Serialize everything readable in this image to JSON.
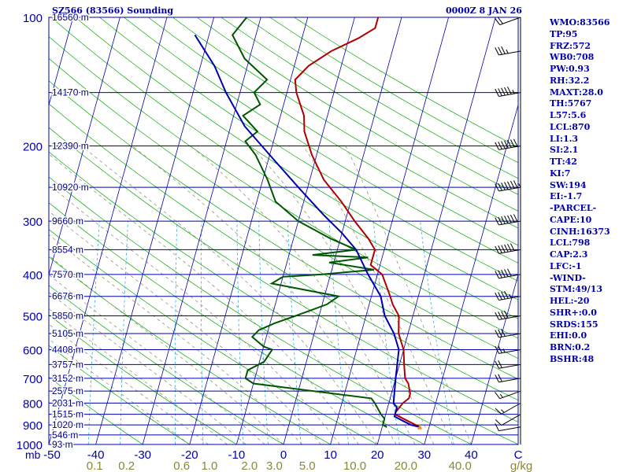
{
  "header": {
    "station": "SZ566 (83566) Sounding",
    "time": "0000Z  8 JAN 26"
  },
  "indices": [
    "WMO:83566",
    "TP:95",
    "FRZ:572",
    "WB0:708",
    "PW:0.93",
    "RH:32.2",
    "MAXT:28.0",
    "TH:5767",
    "L57:5.6",
    "LCL:870",
    "LI:1.3",
    "SI:2.1",
    "TT:42",
    "KI:7",
    "SW:194",
    "EI:-1.7",
    "-PARCEL-",
    "CAPE:10",
    "CINH:16373",
    "LCL:798",
    "CAP:2.3",
    "LFC:-1",
    "-WIND-",
    "STM:49/13",
    "HEL:-20",
    "SHR+:0.0",
    "SRDS:155",
    "EHI:0.0",
    "BRN:0.2",
    "BSHR:48"
  ],
  "chart_data": {
    "type": "line",
    "title": "SZ566 (83566) Sounding",
    "x_label": "C",
    "y_label": "mb",
    "moisture_unit": "g/kg",
    "x_ticks": [
      "-50",
      "-40",
      "-30",
      "-20",
      "-10",
      "0",
      "10",
      "20",
      "30",
      "40"
    ],
    "x_range": [
      -50,
      50
    ],
    "p_range": [
      1000,
      100
    ],
    "pressure_labels": [
      {
        "p": 100,
        "label": "100"
      },
      {
        "p": 200,
        "label": "200"
      },
      {
        "p": 300,
        "label": "300"
      },
      {
        "p": 400,
        "label": "400"
      },
      {
        "p": 500,
        "label": "500"
      },
      {
        "p": 600,
        "label": "600"
      },
      {
        "p": 700,
        "label": "700"
      },
      {
        "p": 800,
        "label": "800"
      },
      {
        "p": 900,
        "label": "900"
      },
      {
        "p": 1000,
        "label": "1000"
      }
    ],
    "height_labels": [
      {
        "p": 100,
        "label": "16560 m"
      },
      {
        "p": 150,
        "label": "14170 m"
      },
      {
        "p": 200,
        "label": "12390 m"
      },
      {
        "p": 250,
        "label": "10920 m"
      },
      {
        "p": 300,
        "label": "9660 m"
      },
      {
        "p": 350,
        "label": "8554 m"
      },
      {
        "p": 400,
        "label": "7570 m"
      },
      {
        "p": 450,
        "label": "6676 m"
      },
      {
        "p": 500,
        "label": "5850 m"
      },
      {
        "p": 550,
        "label": "5105 m"
      },
      {
        "p": 600,
        "label": "4408 m"
      },
      {
        "p": 650,
        "label": "3757 m"
      },
      {
        "p": 700,
        "label": "3152 m"
      },
      {
        "p": 750,
        "label": "2575 m"
      },
      {
        "p": 800,
        "label": "2031 m"
      },
      {
        "p": 850,
        "label": "1515 m"
      },
      {
        "p": 900,
        "label": "1020 m"
      },
      {
        "p": 950,
        "label": "546 m"
      },
      {
        "p": 1000,
        "label": "93 m"
      }
    ],
    "mixing_ratio_labels": [
      "0.1",
      "0.2",
      "0.6",
      "1.0",
      "2.0",
      "3.0",
      "5.0",
      "10.0",
      "20.0",
      "40.0"
    ],
    "series": [
      {
        "role": "temperature",
        "color": "#b00000",
        "points": [
          [
            28,
            910
          ],
          [
            27,
            900
          ],
          [
            24,
            870
          ],
          [
            22,
            850
          ],
          [
            22,
            840
          ],
          [
            23,
            800
          ],
          [
            24,
            780
          ],
          [
            24,
            760
          ],
          [
            23,
            720
          ],
          [
            22,
            700
          ],
          [
            21,
            650
          ],
          [
            20,
            600
          ],
          [
            18,
            550
          ],
          [
            17,
            500
          ],
          [
            15,
            470
          ],
          [
            14,
            450
          ],
          [
            11,
            400
          ],
          [
            8,
            380
          ],
          [
            8,
            350
          ],
          [
            6,
            330
          ],
          [
            2,
            300
          ],
          [
            -2,
            270
          ],
          [
            -7,
            240
          ],
          [
            -11,
            210
          ],
          [
            -14,
            185
          ],
          [
            -15,
            170
          ],
          [
            -18,
            150
          ],
          [
            -19,
            140
          ],
          [
            -17,
            130
          ],
          [
            -13,
            120
          ],
          [
            -8,
            112
          ],
          [
            -5,
            106
          ],
          [
            -5,
            100
          ]
        ]
      },
      {
        "role": "dewpoint",
        "color": "#005500",
        "points": [
          [
            21,
            910
          ],
          [
            20,
            900
          ],
          [
            20,
            870
          ],
          [
            19,
            850
          ],
          [
            17,
            800
          ],
          [
            16,
            780
          ],
          [
            -10,
            720
          ],
          [
            -12,
            700
          ],
          [
            -12,
            670
          ],
          [
            -9,
            640
          ],
          [
            -8,
            600
          ],
          [
            -10,
            590
          ],
          [
            -13,
            560
          ],
          [
            -12,
            540
          ],
          [
            -9,
            520
          ],
          [
            -5,
            500
          ],
          [
            1,
            470
          ],
          [
            3,
            450
          ],
          [
            -12,
            420
          ],
          [
            -10,
            405
          ],
          [
            -2,
            400
          ],
          [
            9,
            390
          ],
          [
            -1,
            375
          ],
          [
            7,
            365
          ],
          [
            -5,
            360
          ],
          [
            4,
            350
          ],
          [
            -2,
            330
          ],
          [
            -10,
            300
          ],
          [
            -16,
            270
          ],
          [
            -19,
            240
          ],
          [
            -23,
            210
          ],
          [
            -26,
            195
          ],
          [
            -24,
            185
          ],
          [
            -28,
            170
          ],
          [
            -25,
            160
          ],
          [
            -27,
            150
          ],
          [
            -25,
            140
          ],
          [
            -31,
            125
          ],
          [
            -35,
            110
          ],
          [
            -33,
            100
          ]
        ]
      },
      {
        "role": "parcel",
        "color": "#0000aa",
        "points": [
          [
            28,
            910
          ],
          [
            26,
            900
          ],
          [
            22,
            860
          ],
          [
            22,
            820
          ],
          [
            21,
            800
          ],
          [
            20,
            700
          ],
          [
            19,
            600
          ],
          [
            17,
            550
          ],
          [
            14,
            500
          ],
          [
            12,
            450
          ],
          [
            8,
            400
          ],
          [
            4,
            350
          ],
          [
            0,
            320
          ],
          [
            -5,
            290
          ],
          [
            -12,
            250
          ],
          [
            -20,
            210
          ],
          [
            -27,
            180
          ],
          [
            -33,
            150
          ],
          [
            -37,
            130
          ],
          [
            -43,
            110
          ]
        ]
      }
    ],
    "wind_barbs": [
      {
        "p": 910,
        "dir": 260,
        "spd": 10
      },
      {
        "p": 850,
        "dir": 240,
        "spd": 10
      },
      {
        "p": 800,
        "dir": 240,
        "spd": 15
      },
      {
        "p": 750,
        "dir": 250,
        "spd": 15
      },
      {
        "p": 700,
        "dir": 260,
        "spd": 20
      },
      {
        "p": 650,
        "dir": 260,
        "spd": 20
      },
      {
        "p": 600,
        "dir": 260,
        "spd": 25
      },
      {
        "p": 550,
        "dir": 260,
        "spd": 30
      },
      {
        "p": 500,
        "dir": 260,
        "spd": 40
      },
      {
        "p": 450,
        "dir": 260,
        "spd": 45
      },
      {
        "p": 400,
        "dir": 260,
        "spd": 50
      },
      {
        "p": 350,
        "dir": 260,
        "spd": 60
      },
      {
        "p": 300,
        "dir": 260,
        "spd": 70
      },
      {
        "p": 250,
        "dir": 260,
        "spd": 75
      },
      {
        "p": 200,
        "dir": 260,
        "spd": 70
      },
      {
        "p": 150,
        "dir": 260,
        "spd": 55
      },
      {
        "p": 120,
        "dir": 260,
        "spd": 35
      },
      {
        "p": 100,
        "dir": 250,
        "spd": 20
      }
    ]
  }
}
